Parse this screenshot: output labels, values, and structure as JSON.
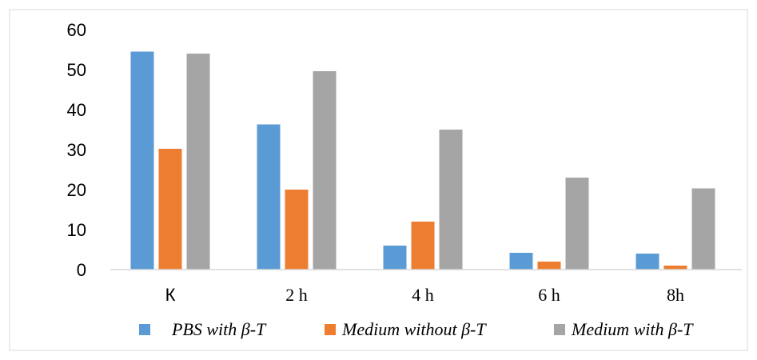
{
  "chart_data": {
    "type": "bar",
    "title": "",
    "xlabel": "",
    "ylabel": "",
    "categories": [
      "К",
      "2 h",
      "4 h",
      "6 h",
      "8h"
    ],
    "ylim": [
      0,
      60
    ],
    "yticks": [
      0,
      10,
      20,
      30,
      40,
      50,
      60
    ],
    "grid": false,
    "legend_position": "bottom",
    "series": [
      {
        "name": "PBS with β-T",
        "color": "#5B9BD5",
        "values": [
          54.5,
          36.3,
          6,
          4.2,
          4
        ]
      },
      {
        "name": "Medium without β-T",
        "color": "#ED7D31",
        "values": [
          30.2,
          20,
          12,
          2,
          1
        ]
      },
      {
        "name": "Medium with β-T",
        "color": "#A5A5A5",
        "values": [
          54,
          49.6,
          35,
          23,
          20.3
        ]
      }
    ]
  }
}
